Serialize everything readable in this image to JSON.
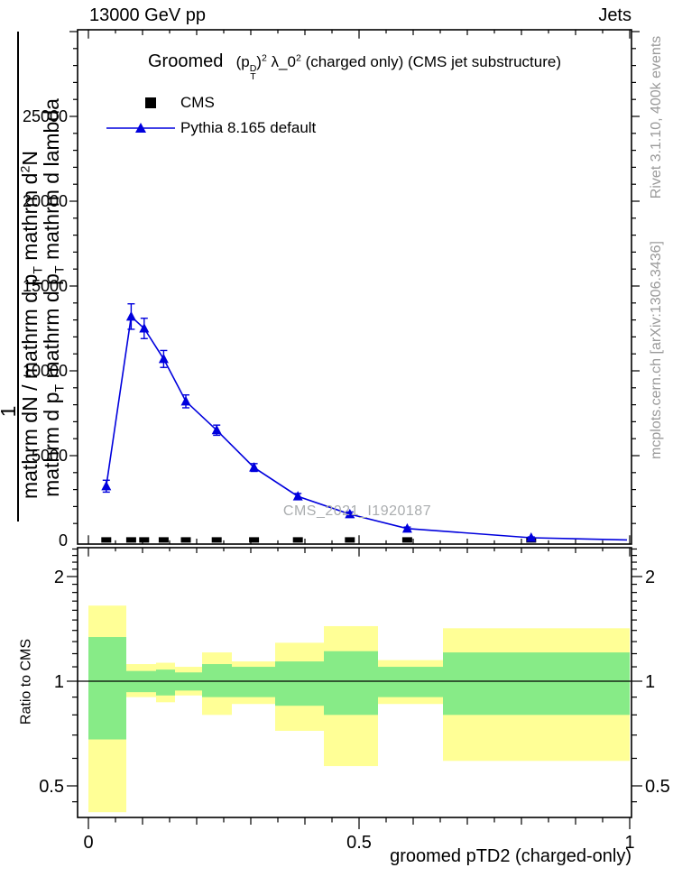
{
  "header": {
    "left": "13000 GeV pp",
    "right": "Jets"
  },
  "title": {
    "groomed": "Groomed",
    "formula": [
      {
        "t": "(p"
      },
      {
        "stack": [
          "D",
          "T"
        ]
      },
      {
        "t": ")"
      },
      {
        "sup": "2"
      },
      {
        "t": " λ_0"
      },
      {
        "sup": "2"
      }
    ],
    "suffix": "  (charged only) (CMS jet substructure)"
  },
  "legend": {
    "items": [
      {
        "label": "CMS",
        "marker": "black-square"
      },
      {
        "label": "Pythia 8.165 default",
        "marker": "blue-triangle-line"
      }
    ]
  },
  "watermark": "CMS_2021_I1920187",
  "side_notes": {
    "top_right": "Rivet 3.1.10,  400k events",
    "bottom_right": "mcplots.cern.ch [arXiv:1306.3436]"
  },
  "y_axis_label": {
    "numerator": "1",
    "line_a": [
      {
        "t": "mathrm dN / mathrm d p"
      },
      {
        "sub": "T"
      },
      {
        "t": " mathrm d"
      },
      {
        "sup": "2"
      },
      {
        "t": "N"
      }
    ],
    "line_b": [
      {
        "t": "mathrm d p"
      },
      {
        "sub": "T"
      },
      {
        "t": " mathrm d p"
      },
      {
        "sub": "T"
      },
      {
        "t": " mathrm d lambda"
      }
    ]
  },
  "ratio_label": "Ratio to CMS",
  "x_axis_label": "groomed pTD2 (charged-only)",
  "colors": {
    "pythia_blue": "#0000dd",
    "band_yellow": "#ffff96",
    "band_green": "#87eb87",
    "marker_black": "#000000",
    "frame": "#000000"
  },
  "chart_data": {
    "type": "line",
    "title": "Groomed (p_T^D)^2 λ_0^2 (charged only) (CMS jet substructure)",
    "xlabel": "groomed pTD2 (charged-only)",
    "ylabel": "1/(dN/dp_T) d^2N/(dp_T dlambda)",
    "xlim": [
      0,
      1.0
    ],
    "main": {
      "ylim": [
        0,
        30000
      ],
      "yticks": [
        {
          "v": 0,
          "label": "0"
        },
        {
          "v": 5000,
          "label": "5000"
        },
        {
          "v": 10000,
          "label": "10000"
        },
        {
          "v": 15000,
          "label": "15000"
        },
        {
          "v": 20000,
          "label": "20000"
        },
        {
          "v": 25000,
          "label": "25000"
        }
      ],
      "cms_points_x": [
        0.033,
        0.079,
        0.103,
        0.139,
        0.18,
        0.237,
        0.306,
        0.387,
        0.483,
        0.589,
        0.818
      ],
      "pythia": {
        "x": [
          0.033,
          0.079,
          0.103,
          0.139,
          0.18,
          0.237,
          0.306,
          0.387,
          0.483,
          0.589,
          0.818
        ],
        "y": [
          3200,
          13200,
          12500,
          10700,
          8200,
          6500,
          4300,
          2600,
          1550,
          700,
          160
        ],
        "yerr": [
          350,
          750,
          600,
          500,
          380,
          300,
          230,
          170,
          130,
          90,
          50
        ],
        "line_tail": {
          "x": 0.995,
          "y": 30
        }
      }
    },
    "xticks": [
      {
        "v": 0,
        "label": "0"
      },
      {
        "v": 0.5,
        "label": "0.5"
      },
      {
        "v": 1,
        "label": "1"
      }
    ],
    "ratio": {
      "scale": "log",
      "ylim": [
        0.405,
        2.42
      ],
      "yticks": [
        {
          "v": 0.5,
          "label": "0.5"
        },
        {
          "v": 1,
          "label": "1"
        },
        {
          "v": 2,
          "label": "2"
        }
      ],
      "minor_ticks": [
        0.45,
        0.6,
        0.7,
        0.8,
        0.9,
        1.1,
        1.2,
        1.3,
        1.4,
        1.5,
        1.6,
        1.7,
        1.8,
        1.9,
        2.1,
        2.2,
        2.3,
        2.4
      ],
      "baseline": 1,
      "bin_edges": [
        0,
        0.07,
        0.1,
        0.125,
        0.16,
        0.21,
        0.265,
        0.345,
        0.435,
        0.535,
        0.655,
        1.0
      ],
      "yellow_band": [
        [
          0.42,
          1.65
        ],
        [
          0.9,
          1.12
        ],
        [
          0.9,
          1.12
        ],
        [
          0.87,
          1.13
        ],
        [
          0.91,
          1.1
        ],
        [
          0.8,
          1.21
        ],
        [
          0.86,
          1.14
        ],
        [
          0.72,
          1.29
        ],
        [
          0.57,
          1.44
        ],
        [
          0.86,
          1.15
        ],
        [
          0.59,
          1.42
        ]
      ],
      "green_band": [
        [
          0.68,
          1.34
        ],
        [
          0.93,
          1.07
        ],
        [
          0.93,
          1.07
        ],
        [
          0.91,
          1.08
        ],
        [
          0.94,
          1.06
        ],
        [
          0.9,
          1.12
        ],
        [
          0.9,
          1.1
        ],
        [
          0.85,
          1.14
        ],
        [
          0.8,
          1.22
        ],
        [
          0.9,
          1.1
        ],
        [
          0.8,
          1.21
        ]
      ]
    }
  }
}
